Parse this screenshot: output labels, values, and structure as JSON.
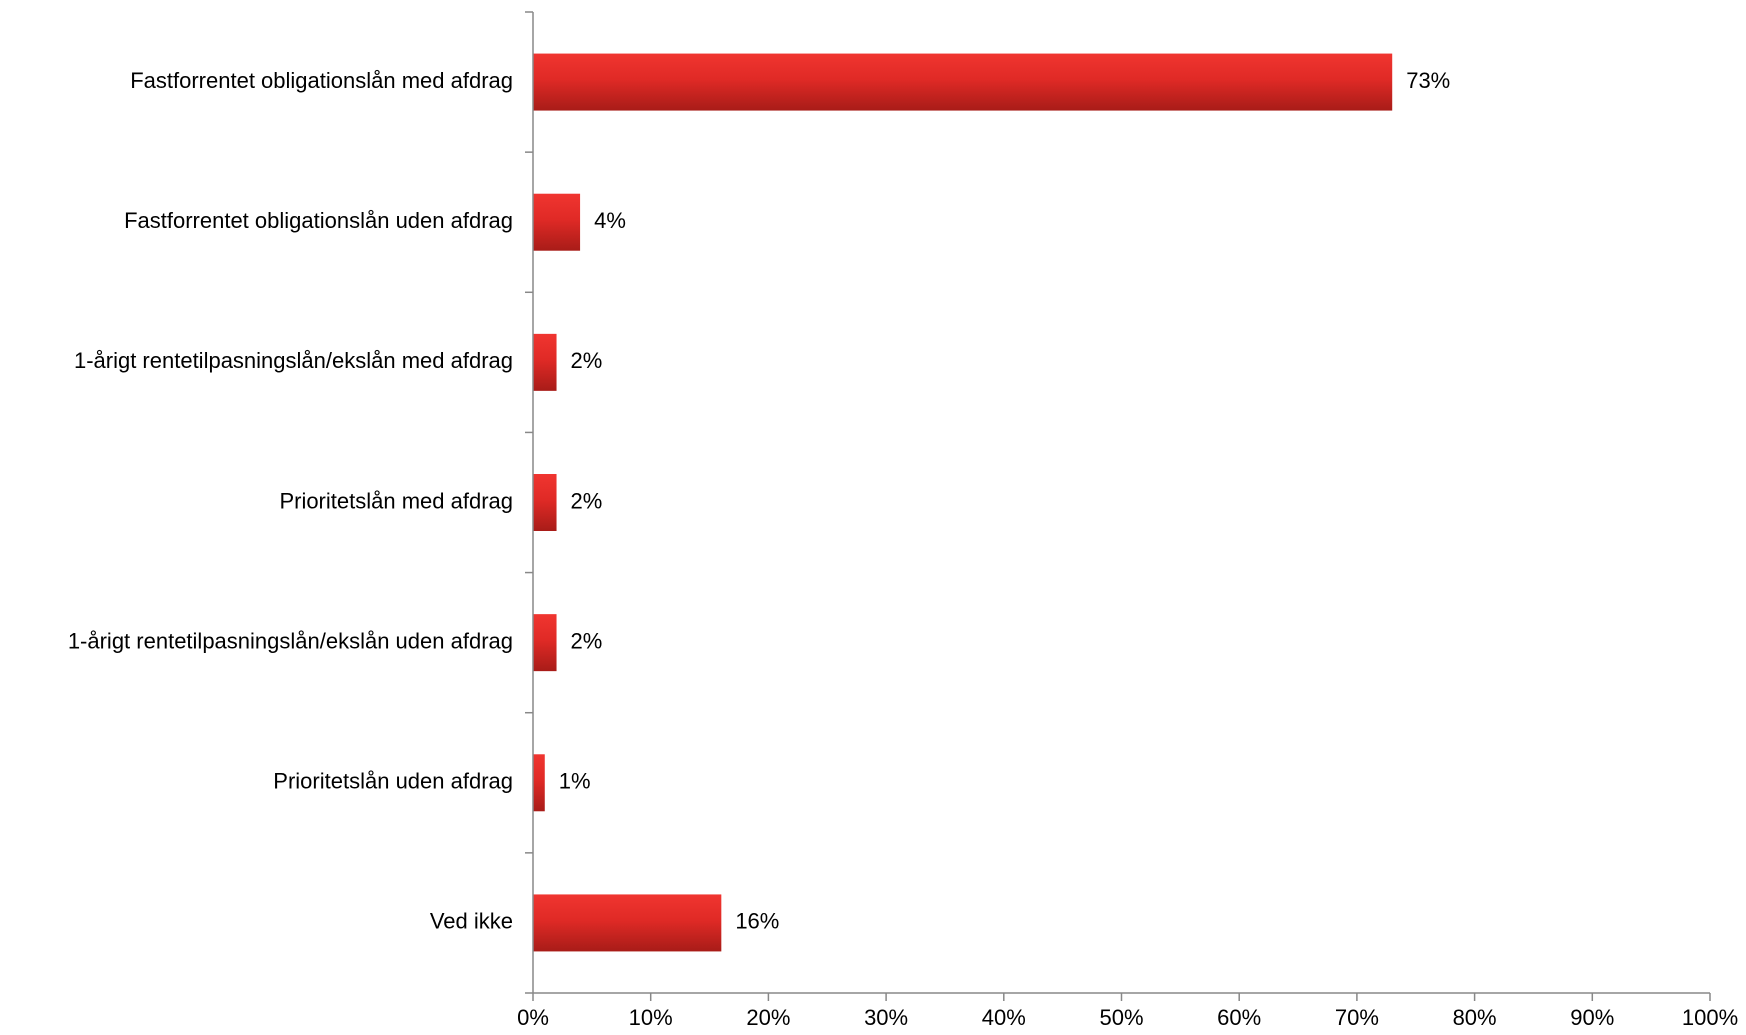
{
  "chart_data": {
    "type": "bar",
    "orientation": "horizontal",
    "title": "",
    "xlabel": "",
    "ylabel": "",
    "categories": [
      "Fastforrentet obligationslån med afdrag",
      "Fastforrentet obligationslån uden afdrag",
      "1-årigt rentetilpasningslån/ekslån med afdrag",
      "Prioritetslån med afdrag",
      "1-årigt rentetilpasningslån/ekslån uden afdrag",
      "Prioritetslån uden afdrag",
      "Ved ikke"
    ],
    "values": [
      73,
      4,
      2,
      2,
      2,
      1,
      16
    ],
    "data_labels": [
      "73%",
      "4%",
      "2%",
      "2%",
      "2%",
      "1%",
      "16%"
    ],
    "xlim": [
      0,
      100
    ],
    "x_ticks": [
      0,
      10,
      20,
      30,
      40,
      50,
      60,
      70,
      80,
      90,
      100
    ],
    "x_tick_labels": [
      "0%",
      "10%",
      "20%",
      "30%",
      "40%",
      "50%",
      "60%",
      "70%",
      "80%",
      "90%",
      "100%"
    ],
    "grid": false,
    "legend": "none",
    "colors": {
      "bar_top": "#f03530",
      "bar_bottom": "#a81c18",
      "axis": "#888888"
    }
  }
}
